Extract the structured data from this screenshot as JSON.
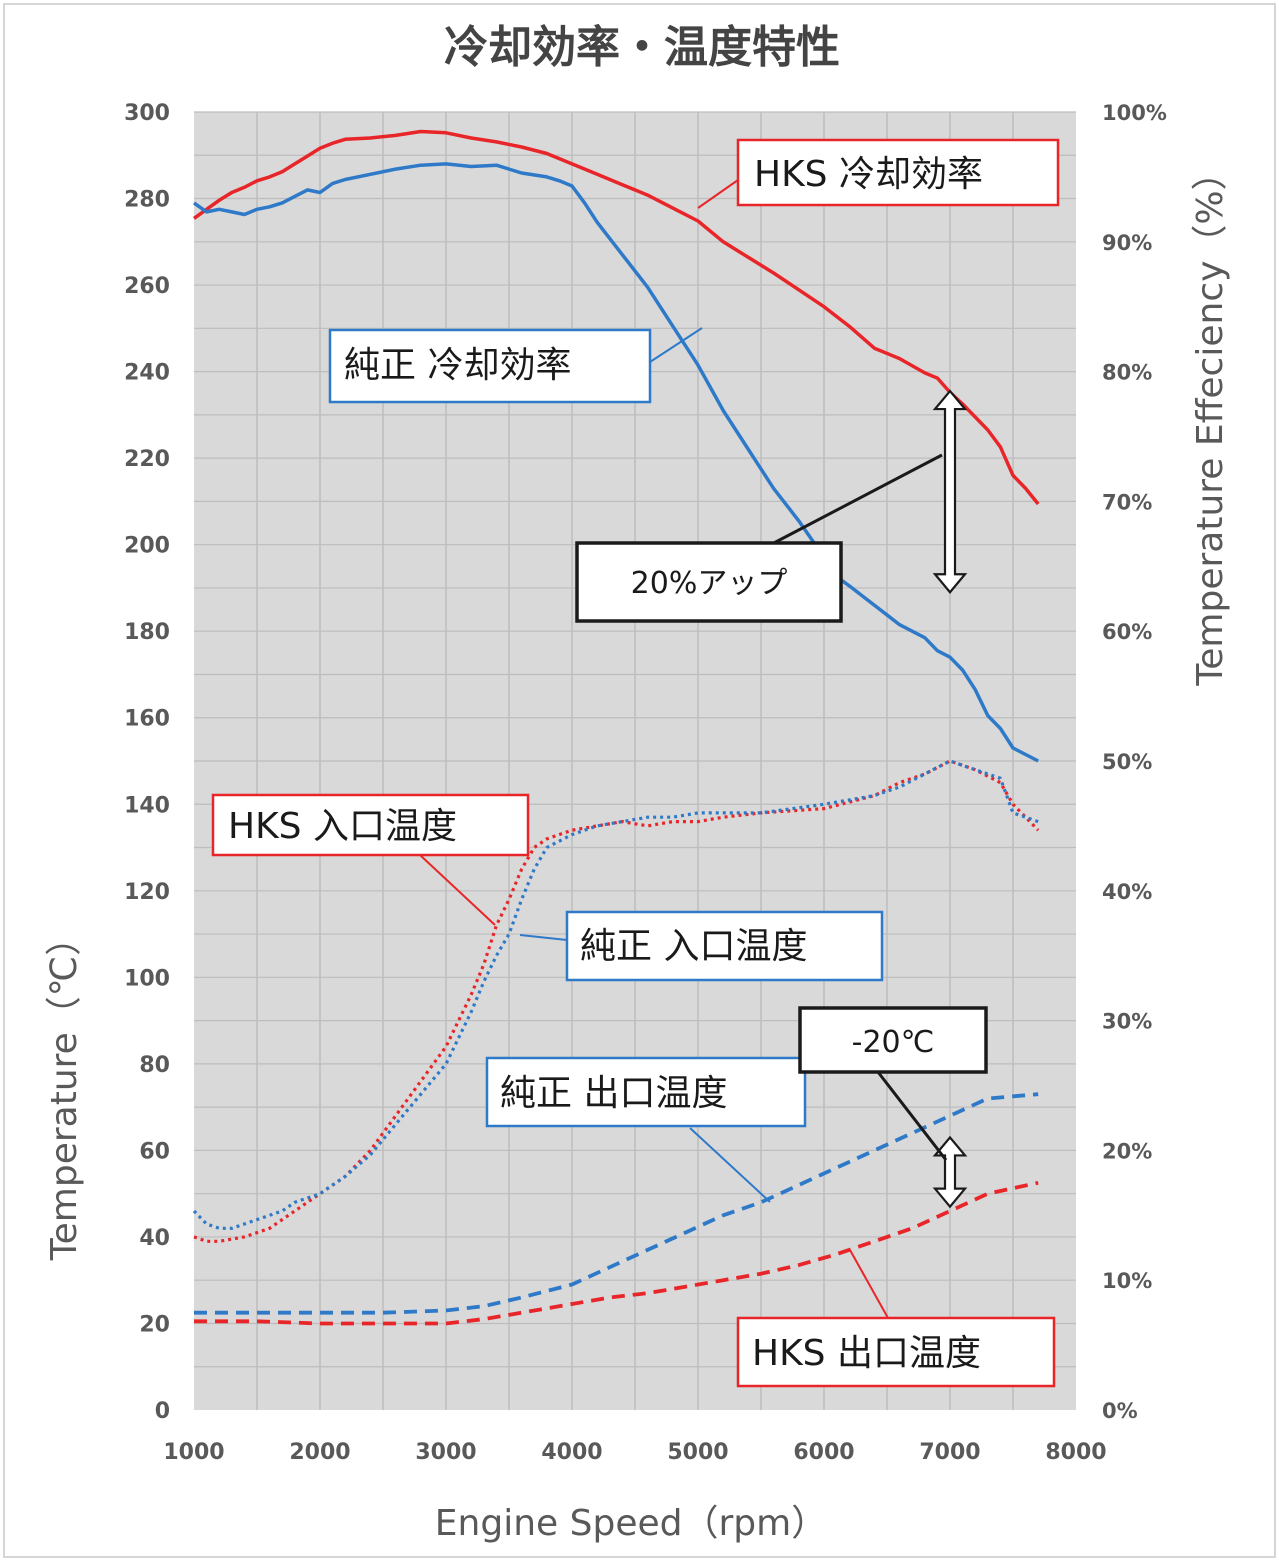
{
  "chart_data": {
    "type": "line",
    "title": "冷却効率・温度特性",
    "xlabel": "Engine Speed（rpm）",
    "ylabel": "Temperature（℃）",
    "y2label": "Temperature Effeciency（%）",
    "xlim": [
      1000,
      8000
    ],
    "ylim": [
      0,
      300
    ],
    "y2lim": [
      0,
      100
    ],
    "xticks": [
      "1000",
      "2000",
      "3000",
      "4000",
      "5000",
      "6000",
      "7000",
      "8000"
    ],
    "yticks": [
      "0",
      "20",
      "40",
      "60",
      "80",
      "100",
      "120",
      "140",
      "160",
      "180",
      "200",
      "220",
      "240",
      "260",
      "280",
      "300"
    ],
    "y2ticks": [
      "0%",
      "10%",
      "20%",
      "30%",
      "40%",
      "50%",
      "60%",
      "70%",
      "80%",
      "90%",
      "100%"
    ],
    "grid": true,
    "colors": {
      "hks": "#e8262a",
      "stock": "#2f7ac8",
      "plot_bg": "#d9d9d9",
      "grid": "#bdbdbd"
    },
    "series": [
      {
        "name": "HKS 冷却効率",
        "axis": "right",
        "style": "solid",
        "color": "#e8262a",
        "x": [
          1000,
          1100,
          1200,
          1300,
          1400,
          1500,
          1600,
          1700,
          1800,
          1900,
          2000,
          2100,
          2200,
          2400,
          2600,
          2800,
          3000,
          3200,
          3400,
          3600,
          3800,
          4000,
          4200,
          4400,
          4600,
          4800,
          5000,
          5200,
          5400,
          5600,
          5800,
          6000,
          6200,
          6400,
          6600,
          6800,
          6900,
          7000,
          7100,
          7200,
          7300,
          7400,
          7500,
          7600,
          7700
        ],
        "y": [
          91.8,
          92.5,
          93.2,
          93.8,
          94.2,
          94.7,
          95.0,
          95.4,
          96.0,
          96.6,
          97.2,
          97.6,
          97.9,
          98.0,
          98.2,
          98.5,
          98.4,
          98.0,
          97.7,
          97.3,
          96.8,
          96.0,
          95.2,
          94.4,
          93.6,
          92.6,
          91.6,
          90.0,
          88.8,
          87.6,
          86.3,
          85.0,
          83.5,
          81.8,
          81.0,
          79.9,
          79.5,
          78.4,
          77.5,
          76.5,
          75.5,
          74.2,
          72.0,
          71.0,
          69.8
        ]
      },
      {
        "name": "純正 冷却効率",
        "axis": "right",
        "style": "solid",
        "color": "#2f7ac8",
        "x": [
          1000,
          1100,
          1200,
          1300,
          1400,
          1500,
          1600,
          1700,
          1800,
          1900,
          2000,
          2100,
          2200,
          2400,
          2600,
          2800,
          3000,
          3200,
          3400,
          3600,
          3800,
          3900,
          4000,
          4100,
          4200,
          4400,
          4600,
          4800,
          5000,
          5200,
          5400,
          5600,
          5800,
          6000,
          6100,
          6200,
          6400,
          6600,
          6800,
          6900,
          7000,
          7100,
          7200,
          7300,
          7400,
          7500,
          7600,
          7700
        ],
        "y": [
          93.0,
          92.3,
          92.5,
          92.3,
          92.1,
          92.5,
          92.7,
          93.0,
          93.5,
          94.0,
          93.8,
          94.5,
          94.8,
          95.2,
          95.6,
          95.9,
          96.0,
          95.8,
          95.9,
          95.3,
          95.0,
          94.7,
          94.3,
          93.0,
          91.5,
          89.0,
          86.5,
          83.5,
          80.5,
          77.0,
          74.0,
          71.0,
          68.5,
          65.7,
          64.2,
          63.5,
          62.0,
          60.5,
          59.5,
          58.5,
          58.0,
          57.0,
          55.5,
          53.5,
          52.5,
          51.0,
          50.5,
          50.0
        ]
      },
      {
        "name": "HKS 入口温度",
        "axis": "left",
        "style": "dotted",
        "color": "#e8262a",
        "x": [
          1000,
          1100,
          1200,
          1300,
          1400,
          1500,
          1600,
          1700,
          1800,
          1900,
          2000,
          2200,
          2400,
          2600,
          2800,
          3000,
          3100,
          3200,
          3300,
          3400,
          3500,
          3600,
          3700,
          3800,
          4000,
          4200,
          4400,
          4600,
          4800,
          5000,
          5200,
          5500,
          6000,
          6400,
          6600,
          6800,
          7000,
          7200,
          7400,
          7500,
          7600,
          7700
        ],
        "y": [
          40,
          39,
          39,
          39.5,
          40,
          41,
          42,
          44,
          46,
          48,
          50,
          54,
          60,
          68,
          76,
          84,
          90,
          96,
          103,
          112,
          118,
          125,
          130,
          132,
          134,
          135,
          136,
          135,
          136,
          136,
          137,
          138,
          139,
          142,
          145,
          147,
          150,
          148,
          145,
          140,
          137,
          134
        ]
      },
      {
        "name": "純正 入口温度",
        "axis": "left",
        "style": "dotted",
        "color": "#2f7ac8",
        "x": [
          1000,
          1100,
          1200,
          1300,
          1400,
          1500,
          1600,
          1700,
          1800,
          1900,
          2000,
          2200,
          2400,
          2600,
          2800,
          3000,
          3100,
          3200,
          3300,
          3400,
          3500,
          3600,
          3700,
          3800,
          4000,
          4200,
          4400,
          4600,
          4800,
          5000,
          5200,
          5500,
          6000,
          6400,
          6600,
          6800,
          7000,
          7200,
          7400,
          7500,
          7600,
          7700
        ],
        "y": [
          46,
          43,
          42,
          42,
          43,
          44,
          45,
          46,
          48,
          49,
          50,
          54,
          59,
          66,
          73,
          80,
          86,
          92,
          99,
          105,
          110,
          118,
          125,
          130,
          133,
          135,
          136,
          137,
          137,
          138,
          138,
          138,
          140,
          142,
          144,
          147,
          150,
          148,
          146,
          138,
          137,
          136
        ]
      },
      {
        "name": "純正 出口温度",
        "axis": "left",
        "style": "dashed",
        "color": "#2f7ac8",
        "x": [
          1000,
          1500,
          2000,
          2500,
          3000,
          3300,
          3600,
          4000,
          4300,
          4600,
          4900,
          5200,
          5500,
          5800,
          6100,
          6400,
          6700,
          7000,
          7300,
          7700
        ],
        "y": [
          22.5,
          22.5,
          22.5,
          22.5,
          23,
          24,
          26,
          29,
          33,
          37,
          41,
          45,
          48,
          52,
          56,
          60,
          64,
          68,
          72,
          73
        ]
      },
      {
        "name": "HKS 出口温度",
        "axis": "left",
        "style": "dashed",
        "color": "#e8262a",
        "x": [
          1000,
          1500,
          2000,
          2500,
          3000,
          3300,
          3600,
          4000,
          4300,
          4600,
          4900,
          5200,
          5500,
          5800,
          6100,
          6400,
          6700,
          7000,
          7300,
          7700
        ],
        "y": [
          20.5,
          20.5,
          20,
          20,
          20,
          21,
          22.5,
          24.5,
          26,
          27,
          28.5,
          30,
          31.5,
          33.5,
          36,
          39,
          42,
          46,
          50,
          52.5
        ]
      }
    ],
    "annotations": [
      {
        "text": "20%アップ",
        "kind": "box",
        "at_rpm": 7000,
        "from_pct": 78.5,
        "to_pct": 63.0
      },
      {
        "text": "-20℃",
        "kind": "box",
        "at_rpm": 7000,
        "from_temp": 63,
        "to_temp": 47
      }
    ]
  }
}
